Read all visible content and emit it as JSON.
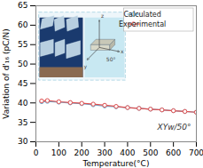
{
  "chart_data": {
    "type": "line",
    "xlabel": "Temperature(°C)",
    "ylabel": "Variation of d'₁₆ (pC/N)",
    "annotations": [
      "XYw/50°",
      "x",
      "y",
      "z",
      "50°"
    ],
    "xlim": [
      0,
      700
    ],
    "xticks": [
      0,
      100,
      200,
      300,
      400,
      500,
      600,
      700
    ],
    "ylim": [
      30,
      65
    ],
    "yticks": [
      30,
      35,
      40,
      45,
      50,
      55,
      60,
      65
    ],
    "grid": false,
    "legend": "upper right",
    "marker": "circle",
    "x": [
      25,
      50,
      100,
      150,
      200,
      250,
      300,
      350,
      400,
      450,
      500,
      550,
      600,
      650,
      700
    ],
    "series": [
      {
        "name": "Calculated",
        "color": "#6ab0d4",
        "values": [
          40.3,
          40.4,
          40.2,
          40.0,
          39.8,
          39.5,
          39.2,
          39.0,
          38.8,
          38.6,
          38.4,
          38.2,
          38.0,
          37.8,
          37.6
        ]
      },
      {
        "name": "Experimental",
        "color": "#e05050",
        "values": [
          40.5,
          40.6,
          40.3,
          40.1,
          39.9,
          39.7,
          39.4,
          39.1,
          38.8,
          38.6,
          38.4,
          38.2,
          38.0,
          37.8,
          37.6
        ]
      }
    ]
  }
}
